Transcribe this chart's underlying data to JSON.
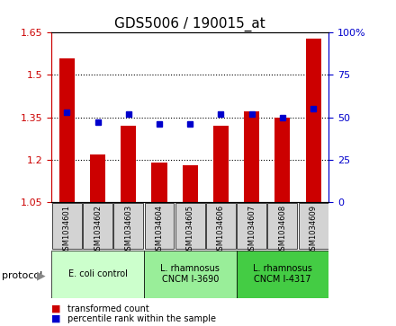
{
  "title": "GDS5006 / 190015_at",
  "samples": [
    "GSM1034601",
    "GSM1034602",
    "GSM1034603",
    "GSM1034604",
    "GSM1034605",
    "GSM1034606",
    "GSM1034607",
    "GSM1034608",
    "GSM1034609"
  ],
  "transformed_counts": [
    1.56,
    1.22,
    1.32,
    1.19,
    1.18,
    1.32,
    1.37,
    1.35,
    1.63
  ],
  "percentile_ranks": [
    53,
    47,
    52,
    46,
    46,
    52,
    52,
    50,
    55
  ],
  "ylim_left": [
    1.05,
    1.65
  ],
  "ylim_right": [
    0,
    100
  ],
  "yticks_left": [
    1.05,
    1.2,
    1.35,
    1.5,
    1.65
  ],
  "yticks_right": [
    0,
    25,
    50,
    75,
    100
  ],
  "ytick_labels_right": [
    "0",
    "25",
    "50",
    "75",
    "100%"
  ],
  "bar_color": "#cc0000",
  "dot_color": "#0000cc",
  "groups": [
    {
      "label": "E. coli control",
      "start": 0,
      "end": 3,
      "color": "#ccffcc"
    },
    {
      "label": "L. rhamnosus\nCNCM I-3690",
      "start": 3,
      "end": 6,
      "color": "#99ee99"
    },
    {
      "label": "L. rhamnosus\nCNCM I-4317",
      "start": 6,
      "end": 9,
      "color": "#44cc44"
    }
  ],
  "protocol_label": "protocol",
  "legend_bar_label": "transformed count",
  "legend_dot_label": "percentile rank within the sample",
  "title_fontsize": 11,
  "tick_fontsize": 8,
  "label_fontsize": 6,
  "group_fontsize": 7
}
